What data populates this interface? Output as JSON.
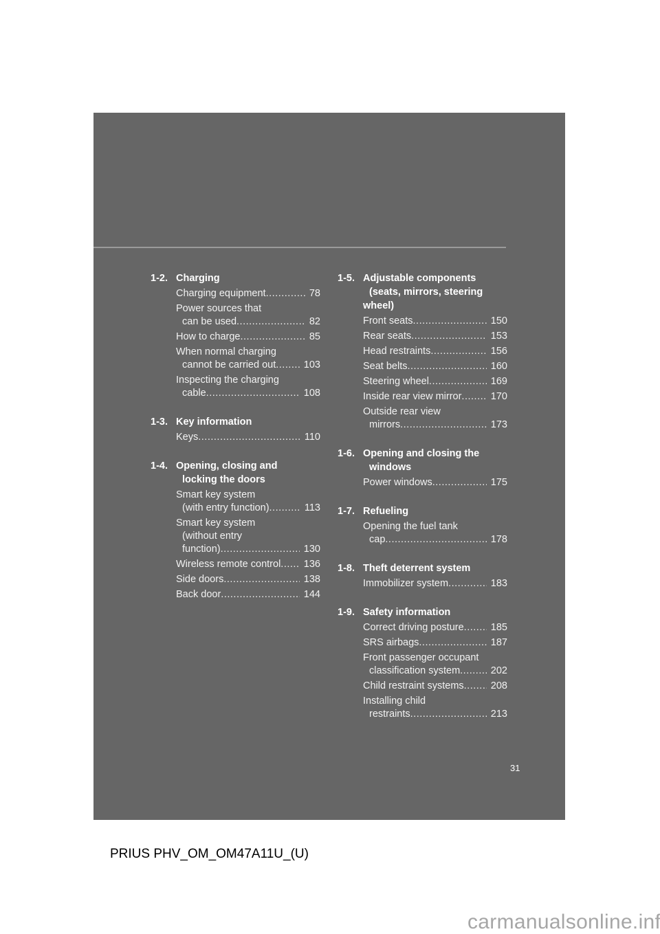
{
  "page_number": "31",
  "footer": "PRIUS PHV_OM_OM47A11U_(U)",
  "watermark": "carmanualsonline.info",
  "colors": {
    "panel": "#666666",
    "rule": "#9a9a9a",
    "text": "#f2f2f2"
  },
  "left": [
    {
      "num": "1-2.",
      "title": [
        "Charging"
      ],
      "items": [
        {
          "lines": [
            "Charging equipment"
          ],
          "page": "78"
        },
        {
          "lines": [
            "Power sources that",
            "can be used"
          ],
          "page": "82"
        },
        {
          "lines": [
            "How to charge"
          ],
          "page": "85"
        },
        {
          "lines": [
            "When normal charging",
            "cannot be carried out"
          ],
          "page": "103"
        },
        {
          "lines": [
            "Inspecting the charging",
            "cable"
          ],
          "page": "108"
        }
      ]
    },
    {
      "num": "1-3.",
      "title": [
        "Key information"
      ],
      "items": [
        {
          "lines": [
            "Keys"
          ],
          "page": "110"
        }
      ]
    },
    {
      "num": "1-4.",
      "title": [
        "Opening, closing and",
        "locking the doors"
      ],
      "items": [
        {
          "lines": [
            "Smart key system",
            "(with entry function)"
          ],
          "page": "113"
        },
        {
          "lines": [
            "Smart key system",
            "(without entry",
            "function)"
          ],
          "page": "130"
        },
        {
          "lines": [
            "Wireless remote control"
          ],
          "page": "136"
        },
        {
          "lines": [
            "Side doors"
          ],
          "page": "138"
        },
        {
          "lines": [
            "Back door"
          ],
          "page": "144"
        }
      ]
    }
  ],
  "right": [
    {
      "num": "1-5.",
      "title": [
        "Adjustable components",
        "(seats, mirrors, steering",
        "wheel)"
      ],
      "items": [
        {
          "lines": [
            "Front seats"
          ],
          "page": "150"
        },
        {
          "lines": [
            "Rear seats"
          ],
          "page": "153"
        },
        {
          "lines": [
            "Head restraints"
          ],
          "page": "156"
        },
        {
          "lines": [
            "Seat belts"
          ],
          "page": "160"
        },
        {
          "lines": [
            "Steering wheel"
          ],
          "page": "169"
        },
        {
          "lines": [
            "Inside rear view mirror"
          ],
          "page": "170"
        },
        {
          "lines": [
            "Outside rear view",
            "mirrors"
          ],
          "page": "173"
        }
      ]
    },
    {
      "num": "1-6.",
      "title": [
        "Opening and closing the",
        "windows"
      ],
      "items": [
        {
          "lines": [
            "Power windows"
          ],
          "page": "175"
        }
      ]
    },
    {
      "num": "1-7.",
      "title": [
        "Refueling"
      ],
      "items": [
        {
          "lines": [
            "Opening the fuel tank",
            "cap"
          ],
          "page": "178"
        }
      ]
    },
    {
      "num": "1-8.",
      "title": [
        "Theft deterrent system"
      ],
      "items": [
        {
          "lines": [
            "Immobilizer system"
          ],
          "page": "183"
        }
      ]
    },
    {
      "num": "1-9.",
      "title": [
        "Safety information"
      ],
      "items": [
        {
          "lines": [
            "Correct driving posture"
          ],
          "page": "185"
        },
        {
          "lines": [
            "SRS airbags"
          ],
          "page": "187"
        },
        {
          "lines": [
            "Front passenger occupant",
            "classification system"
          ],
          "page": "202"
        },
        {
          "lines": [
            "Child restraint systems"
          ],
          "page": "208"
        },
        {
          "lines": [
            "Installing child",
            "restraints"
          ],
          "page": "213"
        }
      ]
    }
  ]
}
